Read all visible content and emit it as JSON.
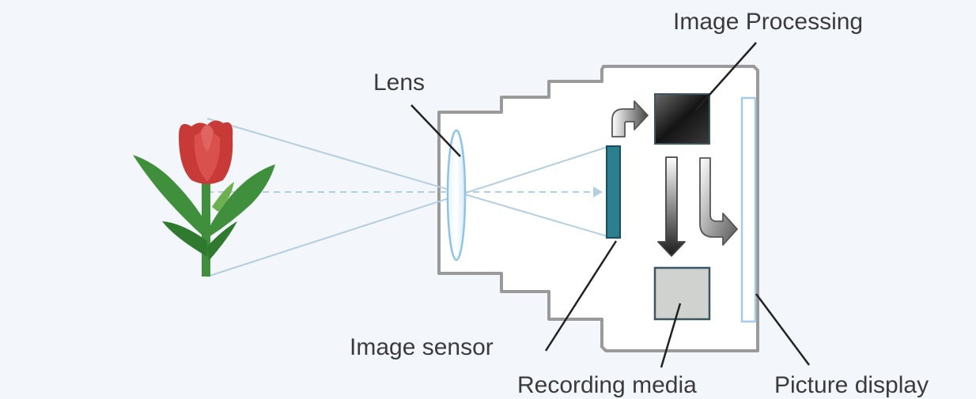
{
  "labels": {
    "image_processing": "Image Processing",
    "lens": "Lens",
    "image_sensor": "Image sensor",
    "recording_media": "Recording media",
    "picture_display": "Picture display"
  },
  "colors": {
    "background": "#f3f7fb",
    "camera_outline": "#9a9a9a",
    "ray": "#b3cee0",
    "lens": "#8fc3e4",
    "sensor": "#2c7f8f",
    "processor": "#1e1e1e",
    "media": "#d0d2d0",
    "display_frame": "#a6cbe6",
    "petal": "#c83a38",
    "leaf": "#3f8f3c"
  },
  "icons": [
    "tulip-icon",
    "lens-icon",
    "image-sensor-icon",
    "processor-chip-icon",
    "recording-media-icon",
    "picture-display-icon",
    "flow-arrow-icon"
  ]
}
